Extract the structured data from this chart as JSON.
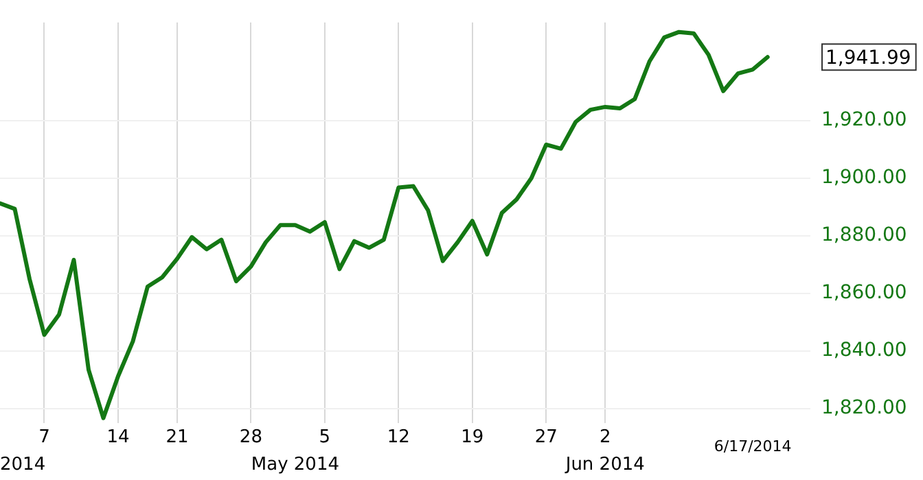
{
  "chart_data": {
    "type": "line",
    "categories": [
      null,
      null,
      null,
      "7",
      null,
      null,
      null,
      null,
      "14",
      null,
      null,
      null,
      "21",
      null,
      null,
      null,
      null,
      "28",
      null,
      null,
      null,
      null,
      "5",
      null,
      null,
      null,
      null,
      "12",
      null,
      null,
      null,
      null,
      "19",
      null,
      null,
      null,
      null,
      "27",
      null,
      null,
      null,
      "2",
      null,
      null,
      null,
      null,
      null,
      null,
      null,
      null,
      null,
      null,
      null
    ],
    "series": [
      {
        "color": "#147814",
        "values": [
          1891.2,
          1889.3,
          1865,
          1845.6,
          1852.6,
          1871.6,
          1833.5,
          1816.7,
          1831.2,
          1843.3,
          1862.3,
          1865.6,
          1872,
          1879.5,
          1875.3,
          1878.6,
          1864.2,
          1869.3,
          1877.7,
          1883.7,
          1883.7,
          1881.4,
          1884.7,
          1868.4,
          1878.1,
          1875.8,
          1878.6,
          1896.7,
          1897.2,
          1888.8,
          1871.2,
          1877.7,
          1885.1,
          1873.5,
          1887.9,
          1892.6,
          1900,
          1911.6,
          1910.2,
          1919.5,
          1923.7,
          1924.7,
          1924.2,
          1927.4,
          1940.5,
          1948.8,
          1950.7,
          1950.2,
          1942.8,
          1930.2,
          1936.3,
          1937.7,
          1941.99
        ]
      }
    ],
    "ylim": [
      1815,
      1954
    ],
    "yticks": [
      {
        "value": 1820,
        "label": "1,820.00"
      },
      {
        "value": 1840,
        "label": "1,840.00"
      },
      {
        "value": 1860,
        "label": "1,860.00"
      },
      {
        "value": 1880,
        "label": "1,880.00"
      },
      {
        "value": 1900,
        "label": "1,900.00"
      },
      {
        "value": 1920,
        "label": "1,920.00"
      }
    ],
    "grid": true,
    "legend": false,
    "marker": "none",
    "line_style": "solid",
    "annotations": [
      "1,941.99",
      "2014",
      "May 2014",
      "Jun 2014",
      "6/17/2014"
    ]
  }
}
